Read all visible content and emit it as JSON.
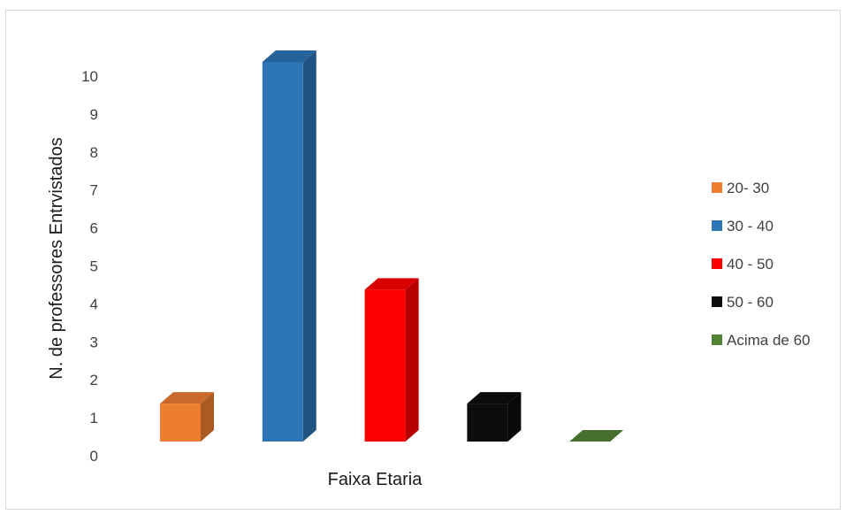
{
  "chart_data": {
    "type": "bar",
    "style": "3d-column",
    "xlabel": "Faixa Etaria",
    "ylabel": "N. de professores Entrvistados",
    "ylim": [
      0,
      10
    ],
    "yticks": [
      "0",
      "1",
      "2",
      "3",
      "4",
      "5",
      "6",
      "7",
      "8",
      "9",
      "10"
    ],
    "grid": false,
    "legend_position": "right",
    "series": [
      {
        "name": "20- 30",
        "value": 1,
        "color": "#ed7d31"
      },
      {
        "name": "30 - 40",
        "value": 10,
        "color": "#2e75b6"
      },
      {
        "name": "40 - 50",
        "value": 4,
        "color": "#ff0000"
      },
      {
        "name": "50 - 60",
        "value": 1,
        "color": "#0d0d0d"
      },
      {
        "name": "Acima de 60",
        "value": 0,
        "color": "#548235"
      }
    ]
  }
}
